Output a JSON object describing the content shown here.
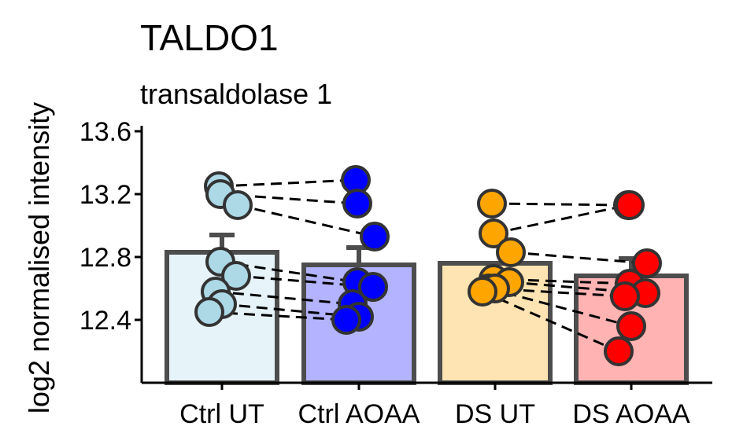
{
  "chart_data": {
    "type": "bar",
    "title": "TALDO1",
    "subtitle": "transaldolase 1",
    "xlabel": "",
    "ylabel": "log2 normalised intensity",
    "ylim": [
      12.0,
      13.6
    ],
    "yticks": [
      "12.4",
      "12.8",
      "13.2",
      "13.6"
    ],
    "categories": [
      "Ctrl UT",
      "Ctrl AOAA",
      "DS UT",
      "DS AOAA"
    ],
    "bar_values": [
      12.83,
      12.75,
      12.76,
      12.68
    ],
    "error_upper": [
      12.94,
      12.86,
      null,
      12.79
    ],
    "bar_fill_colors": [
      "#e6f3f9",
      "#b3b3ff",
      "#fde4b2",
      "#ffb3b3"
    ],
    "point_colors": [
      "#add8e6",
      "#0000ff",
      "#ffa500",
      "#ff0000"
    ],
    "points": [
      [
        13.25,
        13.2,
        13.13,
        12.77,
        12.68,
        12.58,
        12.5,
        12.45
      ],
      [
        13.29,
        13.14,
        12.93,
        12.64,
        12.61,
        12.5,
        12.42,
        12.4
      ],
      [
        13.14,
        12.95,
        12.83,
        12.66,
        12.64,
        12.6,
        12.6,
        12.58
      ],
      [
        13.13,
        13.13,
        12.76,
        12.63,
        12.57,
        12.55,
        12.36,
        12.2
      ]
    ],
    "pairs": [
      {
        "from": [
          0,
          13.25
        ],
        "to": [
          1,
          13.29
        ]
      },
      {
        "from": [
          0,
          13.2
        ],
        "to": [
          1,
          13.14
        ]
      },
      {
        "from": [
          0,
          13.13
        ],
        "to": [
          1,
          12.93
        ]
      },
      {
        "from": [
          0,
          12.77
        ],
        "to": [
          1,
          12.64
        ]
      },
      {
        "from": [
          0,
          12.68
        ],
        "to": [
          1,
          12.61
        ]
      },
      {
        "from": [
          0,
          12.58
        ],
        "to": [
          1,
          12.5
        ]
      },
      {
        "from": [
          0,
          12.5
        ],
        "to": [
          1,
          12.42
        ]
      },
      {
        "from": [
          0,
          12.45
        ],
        "to": [
          1,
          12.4
        ]
      },
      {
        "from": [
          2,
          13.14
        ],
        "to": [
          3,
          13.13
        ]
      },
      {
        "from": [
          2,
          12.95
        ],
        "to": [
          3,
          13.13
        ]
      },
      {
        "from": [
          2,
          12.83
        ],
        "to": [
          3,
          12.76
        ]
      },
      {
        "from": [
          2,
          12.66
        ],
        "to": [
          3,
          12.63
        ]
      },
      {
        "from": [
          2,
          12.64
        ],
        "to": [
          3,
          12.57
        ]
      },
      {
        "from": [
          2,
          12.6
        ],
        "to": [
          3,
          12.55
        ]
      },
      {
        "from": [
          2,
          12.6
        ],
        "to": [
          3,
          12.36
        ]
      },
      {
        "from": [
          2,
          12.58
        ],
        "to": [
          3,
          12.2
        ]
      }
    ],
    "grid": false,
    "legend": "none"
  }
}
